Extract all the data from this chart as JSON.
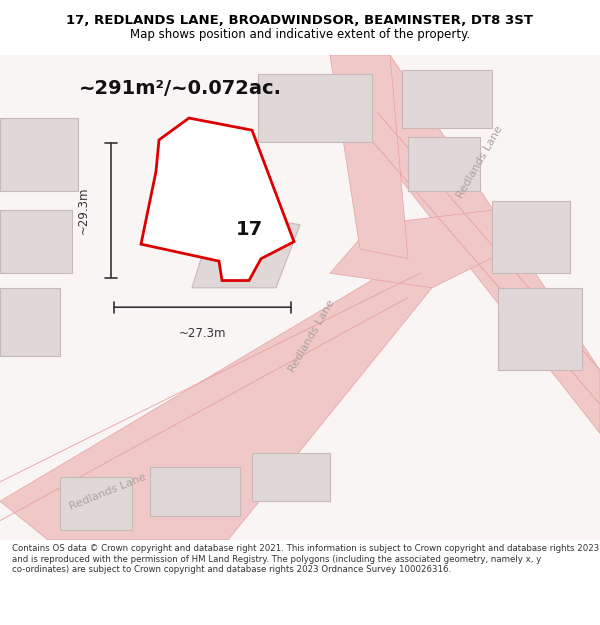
{
  "title_line1": "17, REDLANDS LANE, BROADWINDSOR, BEAMINSTER, DT8 3ST",
  "title_line2": "Map shows position and indicative extent of the property.",
  "area_text": "~291m²/~0.072ac.",
  "dim_width": "~27.3m",
  "dim_height": "~29.3m",
  "number_label": "17",
  "footer_text": "Contains OS data © Crown copyright and database right 2021. This information is subject to Crown copyright and database rights 2023 and is reproduced with the permission of HM Land Registry. The polygons (including the associated geometry, namely x, y co-ordinates) are subject to Crown copyright and database rights 2023 Ordnance Survey 100026316.",
  "bg_color": "#ffffff",
  "map_bg_color": "#f9f5f5",
  "road_color": "#f0c8c8",
  "road_line_color": "#e8a0a0",
  "building_color": "#e0d8d8",
  "building_line_color": "#c8b8b8",
  "property_fill": "#ffffff",
  "property_line_color": "#dd0000",
  "dim_line_color": "#333333",
  "road_label_color": "#b0a0a0",
  "title_color": "#000000",
  "footer_color": "#333333"
}
